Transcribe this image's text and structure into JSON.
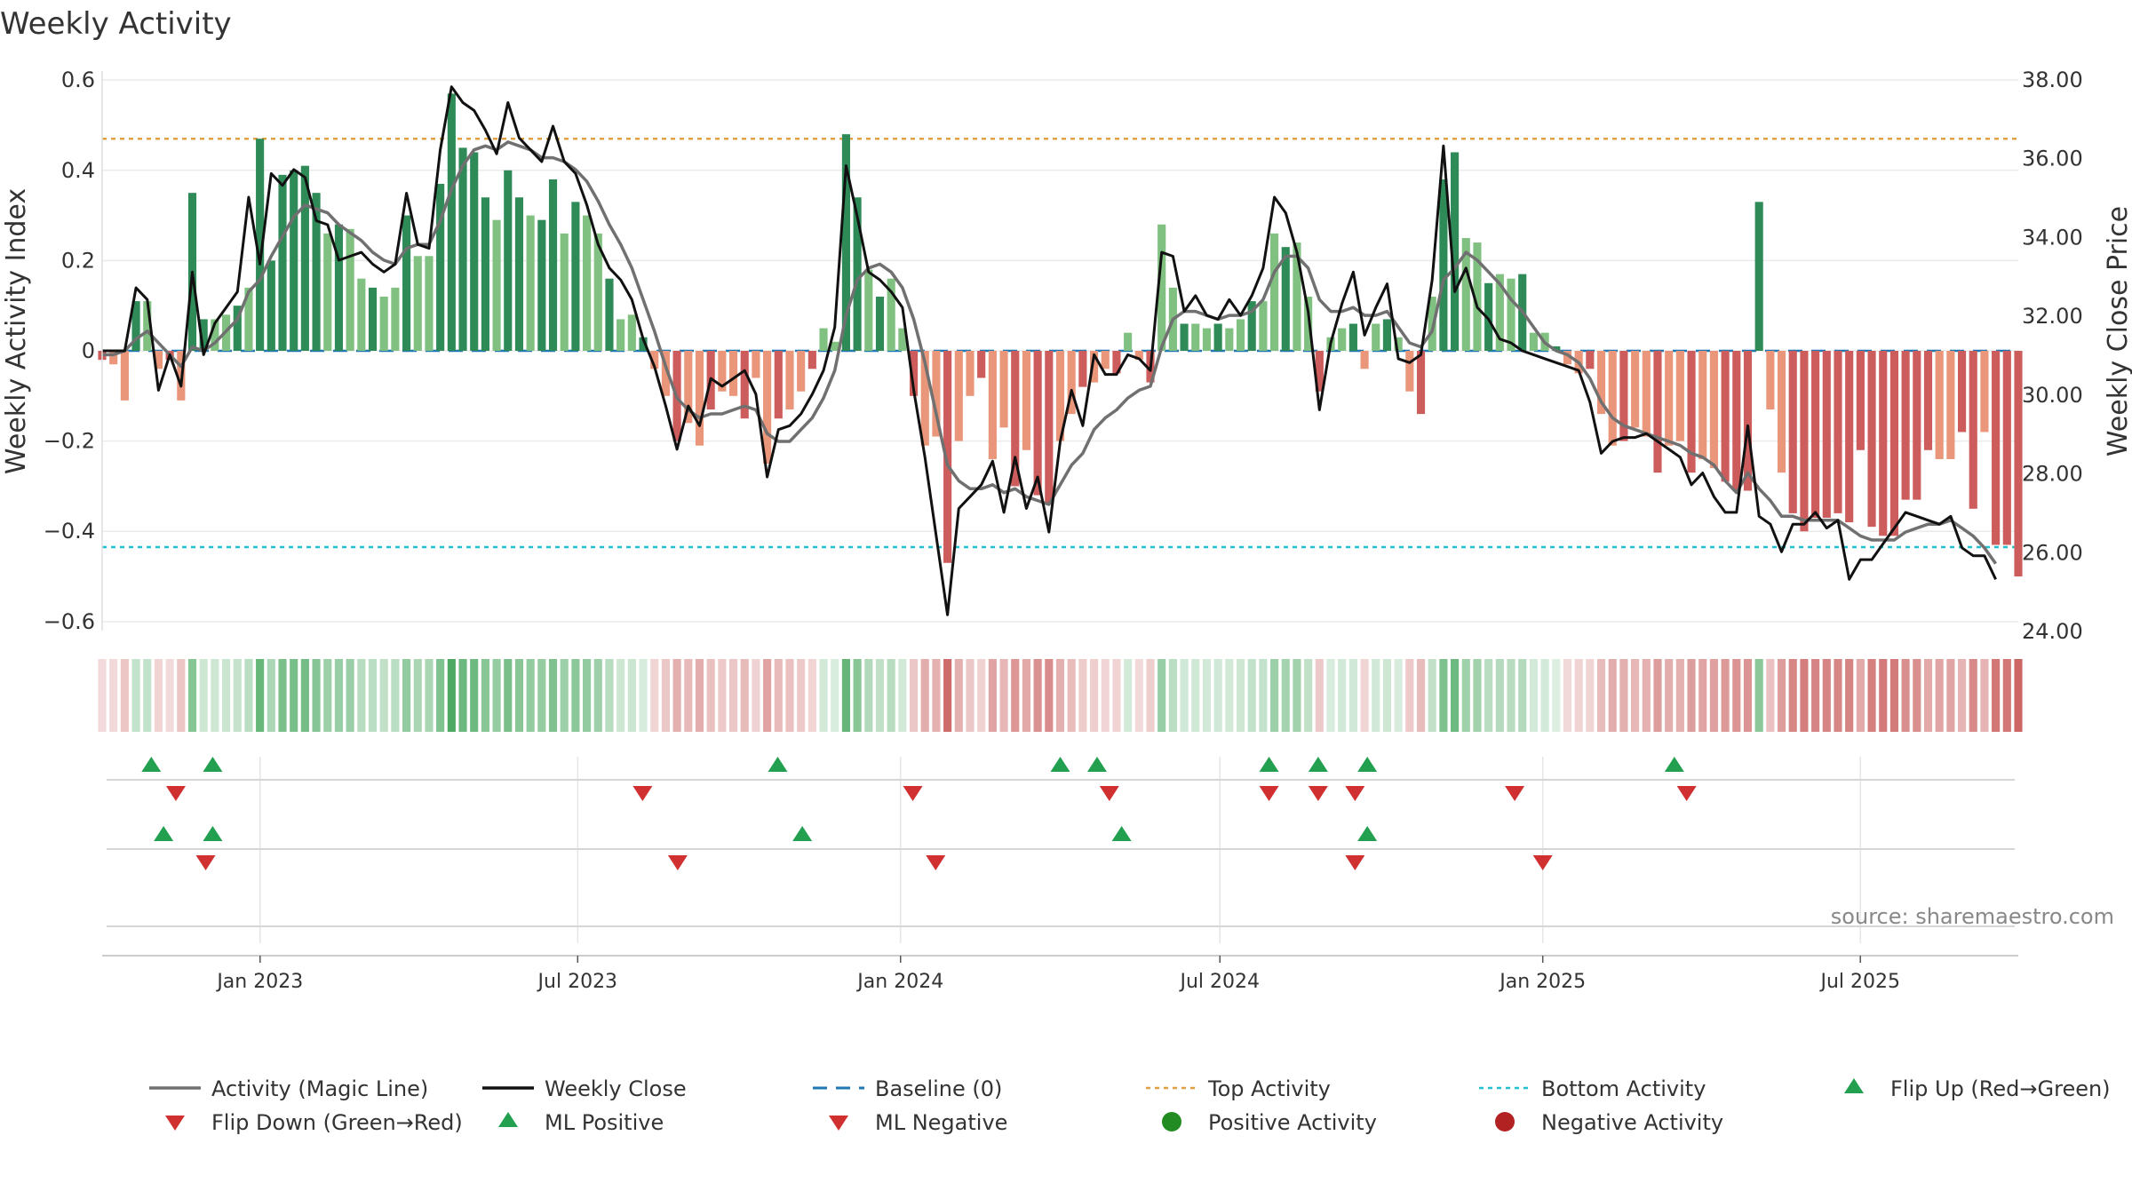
{
  "title": "Weekly Activity",
  "source": "source: sharemaestro.com",
  "colors": {
    "dark_green": "#2e8b57",
    "light_green": "#80c080",
    "dark_red": "#cd5c5c",
    "light_red": "#e9967a",
    "magic": "#707070",
    "close": "#111111",
    "baseline": "#1f77b4",
    "top": "#e0a040",
    "bottom": "#20c0d0",
    "flip_up": "#22a050",
    "flip_down": "#d03030",
    "pos": "#228b22",
    "neg": "#b22222"
  },
  "chart_data": {
    "type": "bar",
    "title": "Weekly Activity",
    "ylabel_left": "Weekly Activity Index",
    "ylabel_right": "Weekly Close Price",
    "ylim_left": [
      -0.62,
      0.62
    ],
    "ylim_right": [
      24.0,
      38.2
    ],
    "left_ticks": [
      0.6,
      0.4,
      0.2,
      0,
      -0.2,
      -0.4,
      -0.6
    ],
    "left_tick_labels": [
      "0.6",
      "0.4",
      "0.2",
      "0",
      "−0.2",
      "−0.4",
      "−0.6"
    ],
    "right_ticks": [
      38,
      36,
      34,
      32,
      30,
      28,
      26,
      24
    ],
    "right_tick_labels": [
      "38.00",
      "36.00",
      "34.00",
      "32.00",
      "30.00",
      "28.00",
      "26.00",
      "24.00"
    ],
    "x_start": "2022-10-03",
    "x_end": "2025-09-29",
    "x_ticks": [
      {
        "date": "2023-01-01",
        "label": "Jan 2023"
      },
      {
        "date": "2023-07-01",
        "label": "Jul 2023"
      },
      {
        "date": "2024-01-01",
        "label": "Jan 2024"
      },
      {
        "date": "2024-07-01",
        "label": "Jul 2024"
      },
      {
        "date": "2025-01-01",
        "label": "Jan 2025"
      },
      {
        "date": "2025-07-01",
        "label": "Jul 2025"
      }
    ],
    "top_activity": 0.47,
    "bottom_activity": -0.435,
    "baseline": 0,
    "activity": [
      -0.02,
      -0.03,
      -0.11,
      0.11,
      0.11,
      -0.04,
      -0.02,
      -0.11,
      0.35,
      0.07,
      0.07,
      0.08,
      0.1,
      0.14,
      0.47,
      0.2,
      0.39,
      0.4,
      0.41,
      0.35,
      0.26,
      0.28,
      0.27,
      0.16,
      0.14,
      0.12,
      0.14,
      0.3,
      0.21,
      0.21,
      0.37,
      0.57,
      0.45,
      0.44,
      0.34,
      0.29,
      0.4,
      0.34,
      0.3,
      0.29,
      0.38,
      0.26,
      0.33,
      0.3,
      0.26,
      0.16,
      0.07,
      0.08,
      0.03,
      -0.04,
      -0.1,
      -0.2,
      -0.16,
      -0.21,
      -0.13,
      -0.09,
      -0.1,
      -0.15,
      -0.06,
      -0.25,
      -0.15,
      -0.13,
      -0.09,
      -0.04,
      0.05,
      0.02,
      0.48,
      0.34,
      0.18,
      0.12,
      0.16,
      0.05,
      -0.1,
      -0.21,
      -0.19,
      -0.47,
      -0.2,
      -0.1,
      -0.06,
      -0.24,
      -0.17,
      -0.3,
      -0.22,
      -0.32,
      -0.34,
      -0.2,
      -0.14,
      -0.08,
      -0.07,
      -0.04,
      -0.05,
      0.04,
      -0.02,
      -0.07,
      0.28,
      0.14,
      0.06,
      0.06,
      0.05,
      0.06,
      0.05,
      0.07,
      0.11,
      0.11,
      0.26,
      0.23,
      0.24,
      0.12,
      -0.09,
      0.03,
      0.05,
      0.06,
      -0.04,
      0.06,
      0.07,
      0.03,
      -0.09,
      -0.14,
      0.12,
      0.38,
      0.44,
      0.25,
      0.24,
      0.15,
      0.17,
      0.16,
      0.17,
      0.04,
      0.04,
      0.01,
      -0.03,
      -0.05,
      -0.04,
      -0.14,
      -0.21,
      -0.2,
      -0.17,
      -0.19,
      -0.27,
      -0.21,
      -0.2,
      -0.27,
      -0.24,
      -0.26,
      -0.29,
      -0.31,
      -0.31,
      0.33,
      -0.13,
      -0.27,
      -0.36,
      -0.4,
      -0.37,
      -0.37,
      -0.36,
      -0.38,
      -0.22,
      -0.39,
      -0.41,
      -0.41,
      -0.33,
      -0.33,
      -0.22,
      -0.24,
      -0.24,
      -0.18,
      -0.35,
      -0.18,
      -0.43,
      -0.43,
      -0.5
    ],
    "weekly_close": [
      31.1,
      31.1,
      31.1,
      32.7,
      32.4,
      30.1,
      31.0,
      30.2,
      33.1,
      31.0,
      31.8,
      32.2,
      32.6,
      35.0,
      33.3,
      35.6,
      35.3,
      35.7,
      35.5,
      34.4,
      34.3,
      33.4,
      33.5,
      33.6,
      33.3,
      33.1,
      33.3,
      35.1,
      33.8,
      33.7,
      36.2,
      37.8,
      37.4,
      37.2,
      36.7,
      36.1,
      37.4,
      36.5,
      36.2,
      35.9,
      36.8,
      35.9,
      35.6,
      34.8,
      33.8,
      33.2,
      32.9,
      32.4,
      31.4,
      30.7,
      29.7,
      28.6,
      29.7,
      29.2,
      30.4,
      30.2,
      30.4,
      30.6,
      30.0,
      27.9,
      29.1,
      29.2,
      29.5,
      30.0,
      30.6,
      31.7,
      35.8,
      34.5,
      33.1,
      32.9,
      32.6,
      32.2,
      30.1,
      28.4,
      26.4,
      24.4,
      27.1,
      27.4,
      27.7,
      28.3,
      27.0,
      28.4,
      27.1,
      27.9,
      26.5,
      28.8,
      30.1,
      29.2,
      31.0,
      30.5,
      30.5,
      31.0,
      30.9,
      30.6,
      33.6,
      33.5,
      32.1,
      32.5,
      32.0,
      31.9,
      32.4,
      32.0,
      32.5,
      33.2,
      35.0,
      34.6,
      33.6,
      32.1,
      29.6,
      31.3,
      32.3,
      33.1,
      31.5,
      32.2,
      32.8,
      30.9,
      30.8,
      31.0,
      32.9,
      36.3,
      32.6,
      33.2,
      32.2,
      31.9,
      31.4,
      31.3,
      31.1,
      31.0,
      30.9,
      30.8,
      30.7,
      30.6,
      29.8,
      28.5,
      28.8,
      28.9,
      28.9,
      29.0,
      28.8,
      28.6,
      28.4,
      27.7,
      28.0,
      27.4,
      27.0,
      27.0,
      29.2,
      26.9,
      26.7,
      26.0,
      26.7,
      26.7,
      27.0,
      26.6,
      26.8,
      25.3,
      25.8,
      25.8,
      26.2,
      26.6,
      27.0,
      26.9,
      26.8,
      26.7,
      26.9,
      26.1,
      25.9,
      25.9,
      25.3
    ],
    "magic_line": [
      31.0,
      31.0,
      31.1,
      31.4,
      31.6,
      31.3,
      31.0,
      30.7,
      31.2,
      31.1,
      31.3,
      31.6,
      31.9,
      32.6,
      32.9,
      33.5,
      34.0,
      34.5,
      34.8,
      34.7,
      34.6,
      34.3,
      34.1,
      33.9,
      33.6,
      33.4,
      33.3,
      33.7,
      33.8,
      33.8,
      34.4,
      35.2,
      35.8,
      36.2,
      36.3,
      36.2,
      36.4,
      36.3,
      36.2,
      36.0,
      36.0,
      35.9,
      35.7,
      35.4,
      34.9,
      34.3,
      33.8,
      33.2,
      32.4,
      31.6,
      30.7,
      29.9,
      29.6,
      29.4,
      29.5,
      29.5,
      29.6,
      29.7,
      29.6,
      29.0,
      28.8,
      28.8,
      29.1,
      29.4,
      29.9,
      30.6,
      32.0,
      32.9,
      33.2,
      33.3,
      33.1,
      32.7,
      31.9,
      30.8,
      29.5,
      28.2,
      27.8,
      27.6,
      27.6,
      27.7,
      27.5,
      27.6,
      27.4,
      27.3,
      27.2,
      27.7,
      28.2,
      28.5,
      29.1,
      29.4,
      29.6,
      29.9,
      30.1,
      30.2,
      31.2,
      31.9,
      32.1,
      32.1,
      32.0,
      31.9,
      32.0,
      32.0,
      32.1,
      32.4,
      33.1,
      33.5,
      33.5,
      33.2,
      32.4,
      32.1,
      32.1,
      32.2,
      32.0,
      32.0,
      32.1,
      31.7,
      31.3,
      31.2,
      31.6,
      32.9,
      33.2,
      33.6,
      33.4,
      33.1,
      32.8,
      32.4,
      32.1,
      31.7,
      31.3,
      31.1,
      31.0,
      30.8,
      30.4,
      29.8,
      29.4,
      29.2,
      29.1,
      29.0,
      28.9,
      28.8,
      28.7,
      28.5,
      28.4,
      28.2,
      27.8,
      27.5,
      28.0,
      27.6,
      27.3,
      26.9,
      26.9,
      26.8,
      26.8,
      26.8,
      26.8,
      26.6,
      26.4,
      26.3,
      26.3,
      26.3,
      26.5,
      26.6,
      26.7,
      26.7,
      26.8,
      26.6,
      26.4,
      26.1,
      25.7
    ],
    "flip_up_dates": [
      "2022-10-31",
      "2022-12-05",
      "2023-10-23",
      "2024-04-01",
      "2024-04-22",
      "2024-07-29",
      "2024-08-26",
      "2024-09-23",
      "2025-03-17"
    ],
    "flip_down_dates": [
      "2022-11-14",
      "2023-08-07",
      "2024-01-08",
      "2024-04-29",
      "2024-07-29",
      "2024-08-26",
      "2024-09-16",
      "2024-12-16",
      "2025-03-24"
    ],
    "ml_positive_dates": [
      "2022-11-07",
      "2022-12-05",
      "2023-11-06",
      "2024-05-06",
      "2024-09-23"
    ],
    "ml_negative_dates": [
      "2022-12-01",
      "2023-08-27",
      "2024-01-21",
      "2024-09-16",
      "2025-01-01"
    ],
    "legend": [
      {
        "label": "Activity (Magic Line)",
        "kind": "line",
        "color": "#707070"
      },
      {
        "label": "Weekly Close",
        "kind": "line",
        "color": "#111111"
      },
      {
        "label": "Baseline (0)",
        "kind": "dash",
        "color": "#1f77b4"
      },
      {
        "label": "Top Activity",
        "kind": "dot",
        "color": "#e0a040"
      },
      {
        "label": "Bottom Activity",
        "kind": "dot",
        "color": "#20c0d0"
      },
      {
        "label": "Flip Up (Red→Green)",
        "kind": "tri-up",
        "color": "#22a050"
      },
      {
        "label": "Flip Down (Green→Red)",
        "kind": "tri-down",
        "color": "#d03030"
      },
      {
        "label": "ML Positive",
        "kind": "tri-up",
        "color": "#22a050"
      },
      {
        "label": "ML Negative",
        "kind": "tri-down",
        "color": "#d03030"
      },
      {
        "label": "Positive Activity",
        "kind": "circle",
        "color": "#228b22"
      },
      {
        "label": "Negative Activity",
        "kind": "circle",
        "color": "#b22222"
      }
    ]
  }
}
